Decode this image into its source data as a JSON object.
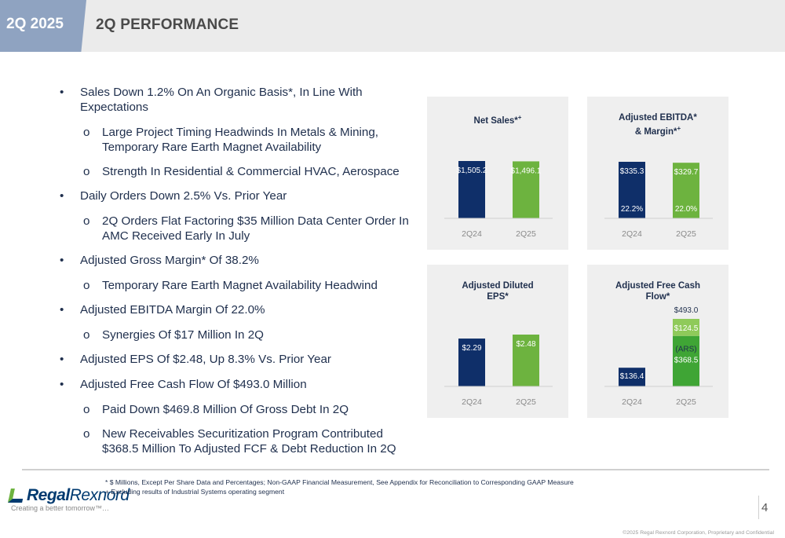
{
  "header": {
    "tag": "2Q 2025",
    "title": "2Q PERFORMANCE"
  },
  "bullets": [
    {
      "text": "Sales Down 1.2% On An Organic Basis*, In Line With Expectations",
      "subs": [
        "Large Project Timing Headwinds In Metals & Mining, Temporary Rare Earth Magnet Availability",
        "Strength In Residential & Commercial HVAC, Aerospace"
      ]
    },
    {
      "text": "Daily Orders Down 2.5% Vs. Prior Year",
      "subs": [
        "2Q Orders Flat Factoring $35 Million Data Center Order In AMC Received Early In July"
      ]
    },
    {
      "text": "Adjusted Gross Margin* Of 38.2%",
      "subs": [
        "Temporary Rare Earth Magnet Availability Headwind"
      ]
    },
    {
      "text": "Adjusted EBITDA Margin Of 22.0%",
      "subs": [
        "Synergies Of $17 Million In 2Q"
      ]
    },
    {
      "text": "Adjusted EPS Of $2.48, Up 8.3% Vs. Prior Year",
      "subs": []
    },
    {
      "text": "Adjusted Free Cash Flow Of $493.0 Million",
      "subs": [
        "Paid Down $469.8 Million Of Gross Debt In 2Q",
        "New Receivables Securitization Program Contributed $368.5 Million To Adjusted FCF & Debt Reduction In 2Q"
      ]
    }
  ],
  "colors": {
    "navy": "#0f2f69",
    "green": "#6db33f",
    "green_dark": "#3fa535",
    "green_light": "#8fca5a",
    "axis_text": "#8a8a8a"
  },
  "chart_data": [
    {
      "type": "bar",
      "title": "Net Sales*",
      "title_sup": "+",
      "categories": [
        "2Q24",
        "2Q25"
      ],
      "values": [
        1505.2,
        1496.1
      ],
      "labels": [
        "$1,505.2",
        "$1,496.1"
      ]
    },
    {
      "type": "bar",
      "title": "Adjusted EBITDA*",
      "title_line2": "& Margin*",
      "title_sup": "+",
      "categories": [
        "2Q24",
        "2Q25"
      ],
      "values": [
        335.3,
        329.7
      ],
      "labels": [
        "$335.3",
        "$329.7"
      ],
      "margins": [
        "22.2%",
        "22.0%"
      ]
    },
    {
      "type": "bar",
      "title": "Adjusted Diluted",
      "title_line2": "EPS*",
      "categories": [
        "2Q24",
        "2Q25"
      ],
      "values": [
        2.29,
        2.48
      ],
      "labels": [
        "$2.29",
        "$2.48"
      ]
    },
    {
      "type": "bar",
      "title": "Adjusted Free Cash",
      "title_line2": "Flow*",
      "categories": [
        "2Q24",
        "2Q25"
      ],
      "values": [
        136.4,
        493.0
      ],
      "labels": [
        "$136.4",
        "$493.0"
      ],
      "stack_2Q25": [
        {
          "name": "(ARS)",
          "value": 368.5,
          "label": "$368.5"
        },
        {
          "name": "",
          "value": 124.5,
          "label": "$124.5"
        }
      ]
    }
  ],
  "footer": {
    "note1": "* $ Millions, Except Per Share Data and Percentages; Non-GAAP Financial Measurement, See Appendix  for Reconciliation to Corresponding GAAP Measure",
    "note2": "+ Excluding results of Industrial Systems operating segment",
    "logo_a": "Regal",
    "logo_b": "Rexnord",
    "tagline": "Creating a better tomorrow™…",
    "page": "4",
    "copyright": "©2025 Regal Rexnord Corporation, Proprietary and Confidential"
  }
}
